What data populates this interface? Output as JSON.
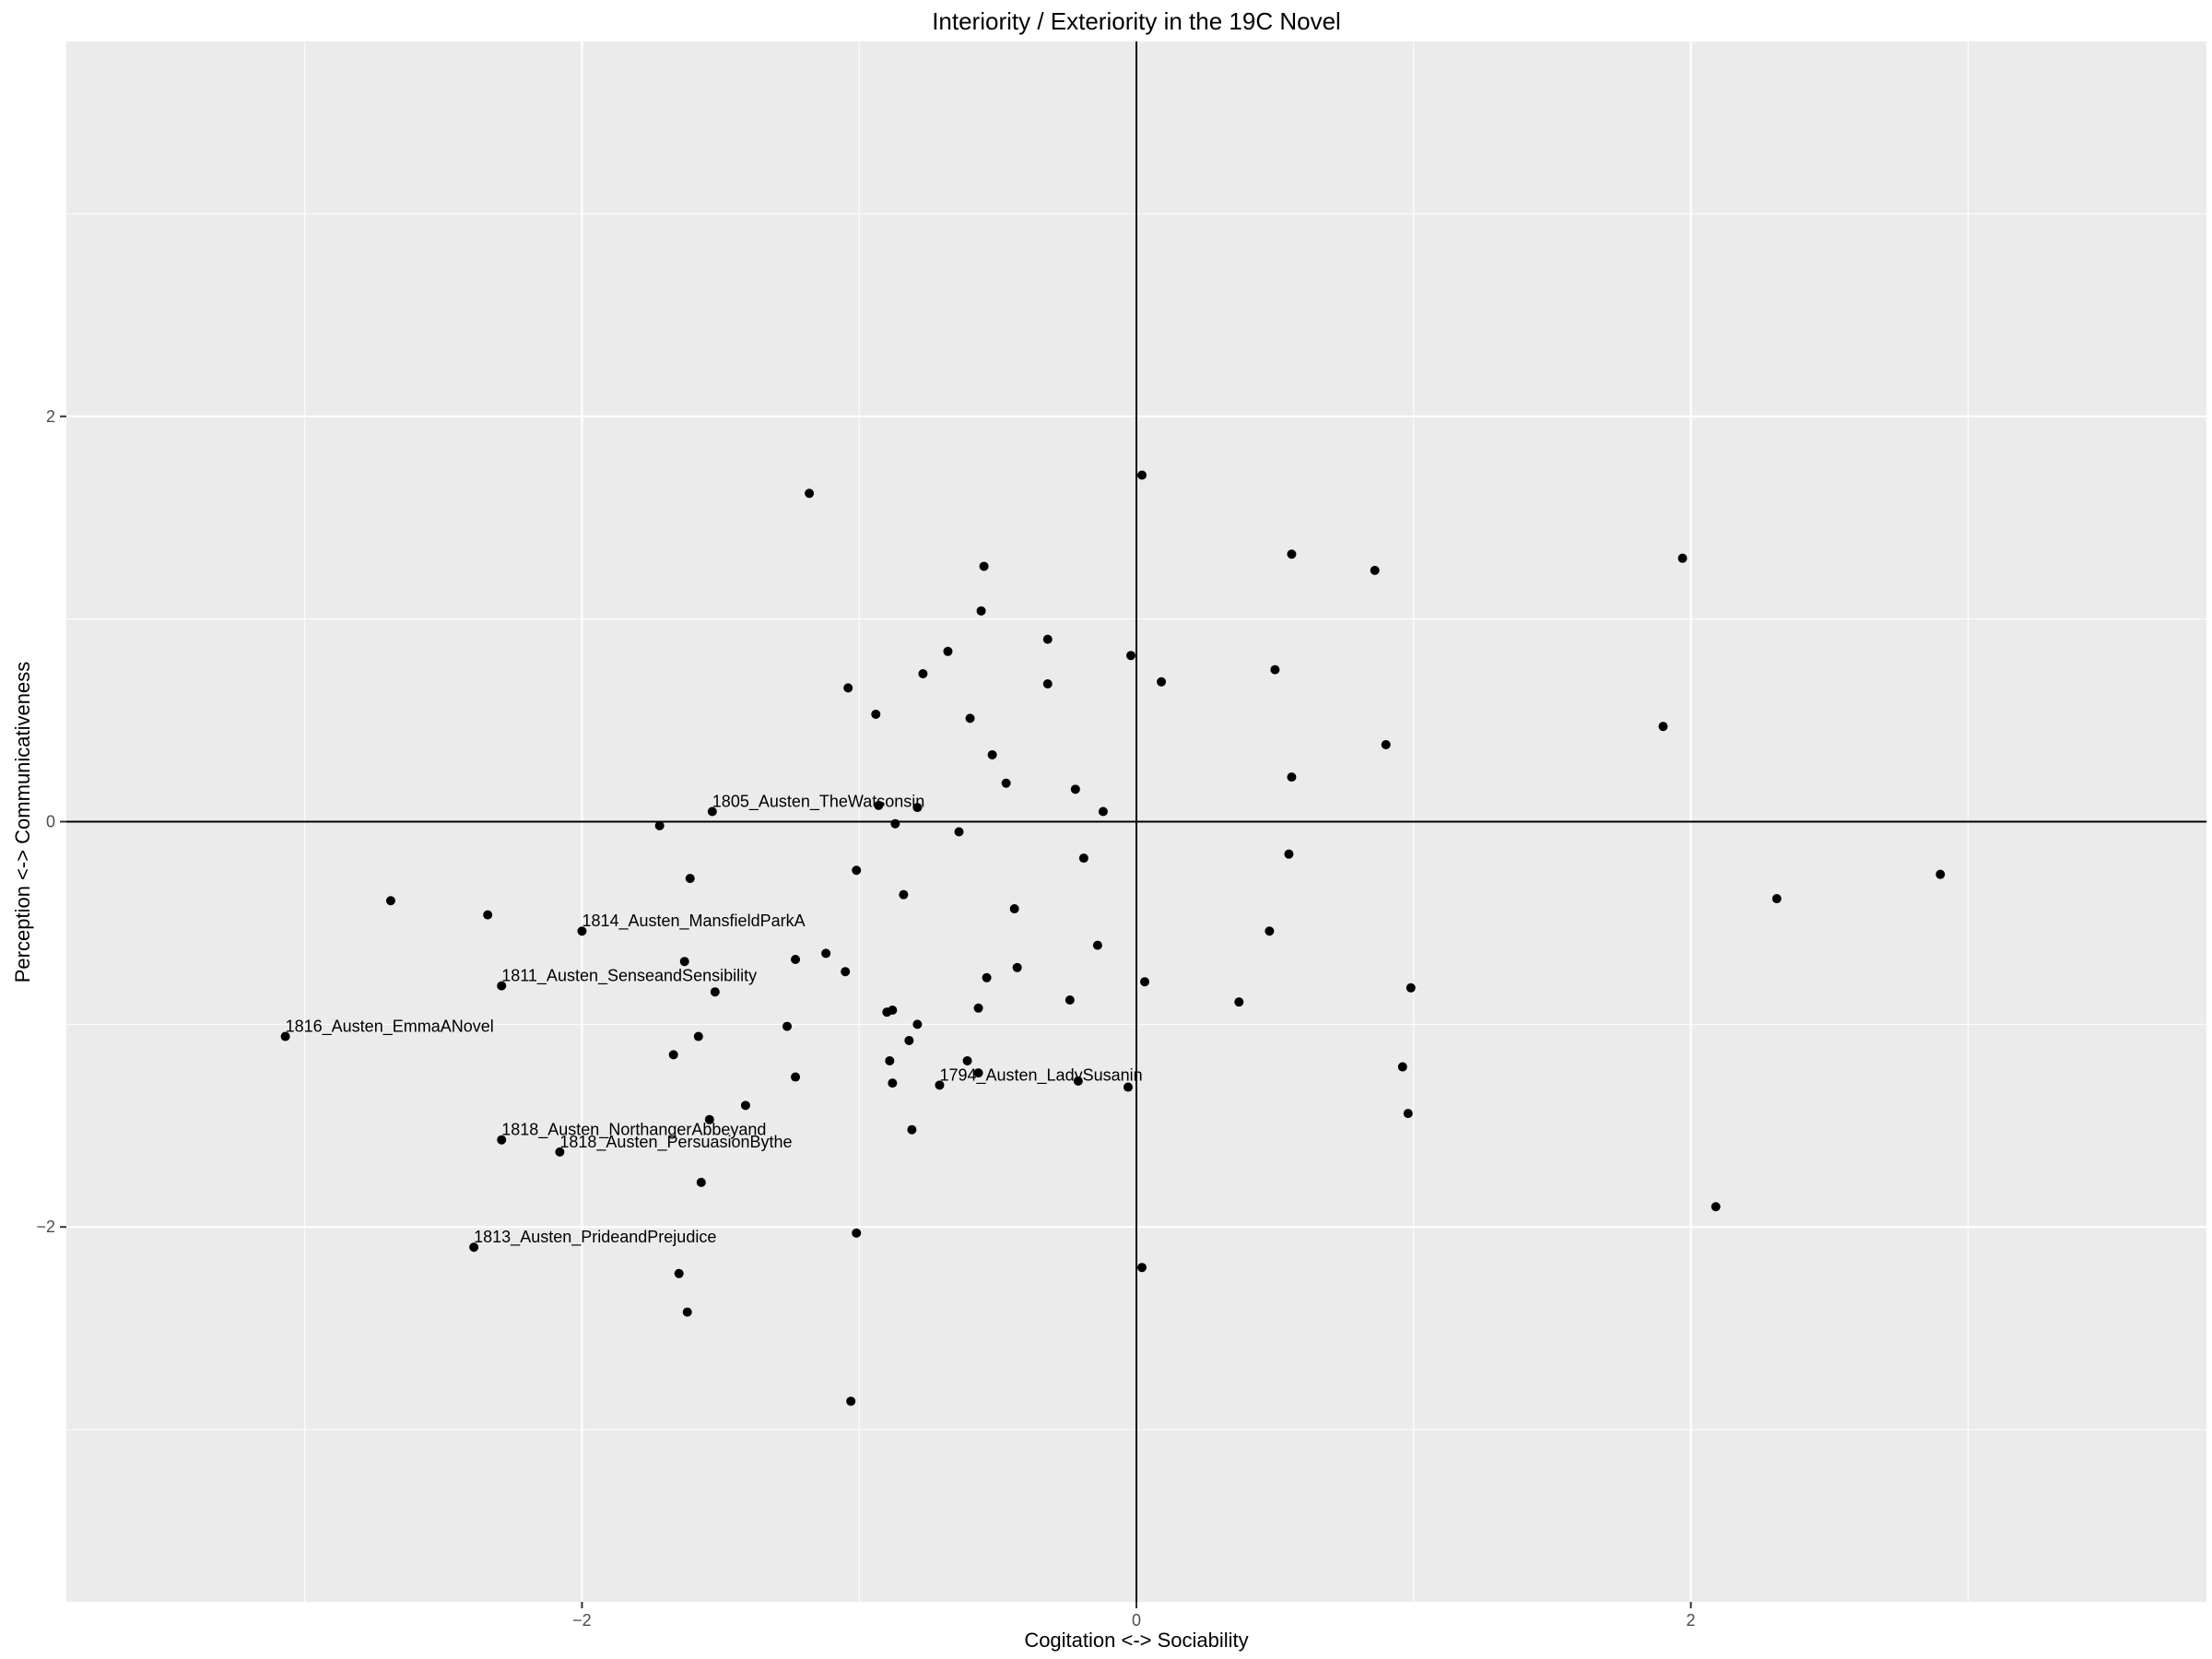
{
  "chart_data": {
    "type": "scatter",
    "title": "Interiority / Exteriority in the 19C Novel",
    "xlabel": "Cogitation <-> Sociability",
    "ylabel": "Perception <-> Communicativeness",
    "xlim": [
      -3.86,
      3.86
    ],
    "ylim": [
      -3.85,
      3.85
    ],
    "xticks": [
      -2,
      0,
      2
    ],
    "xtick_labels": [
      "−2",
      "0",
      "2"
    ],
    "yticks": [
      -2,
      0,
      2
    ],
    "ytick_labels": [
      "−2",
      "0",
      "2"
    ],
    "grid": true,
    "reference_lines": {
      "x": 0,
      "y": 0
    },
    "colors": {
      "panel": "#ebebeb",
      "grid": "#ffffff",
      "point": "#000000",
      "refline": "#000000"
    },
    "labeled_points": [
      {
        "label": "1805_Austen_TheWatsonsin",
        "x": -1.53,
        "y": 0.05
      },
      {
        "label": "1814_Austen_MansfieldParkA",
        "x": -2.0,
        "y": -0.54
      },
      {
        "label": "1811_Austen_SenseandSensibility",
        "x": -2.29,
        "y": -0.81
      },
      {
        "label": "1816_Austen_EmmaANovel",
        "x": -3.07,
        "y": -1.06
      },
      {
        "label": "1794_Austen_LadySusanin",
        "x": -0.71,
        "y": -1.3
      },
      {
        "label": "1818_Austen_NorthangerAbbeyand",
        "x": -2.29,
        "y": -1.57
      },
      {
        "label": "1818_Austen_PersuasionBythe",
        "x": -2.08,
        "y": -1.63
      },
      {
        "label": "1813_Austen_PrideandPrejudice",
        "x": -2.39,
        "y": -2.1
      }
    ],
    "points": [
      {
        "x": -1.18,
        "y": 1.62
      },
      {
        "x": 0.02,
        "y": 1.71
      },
      {
        "x": 0.56,
        "y": 1.32
      },
      {
        "x": 0.86,
        "y": 1.24
      },
      {
        "x": 1.97,
        "y": 1.3
      },
      {
        "x": -0.55,
        "y": 1.26
      },
      {
        "x": -0.56,
        "y": 1.04
      },
      {
        "x": -0.32,
        "y": 0.9
      },
      {
        "x": -0.68,
        "y": 0.84
      },
      {
        "x": -0.02,
        "y": 0.82
      },
      {
        "x": -0.77,
        "y": 0.73
      },
      {
        "x": 0.5,
        "y": 0.75
      },
      {
        "x": -1.04,
        "y": 0.66
      },
      {
        "x": -0.32,
        "y": 0.68
      },
      {
        "x": 0.09,
        "y": 0.69
      },
      {
        "x": -0.94,
        "y": 0.53
      },
      {
        "x": -0.6,
        "y": 0.51
      },
      {
        "x": 0.9,
        "y": 0.38
      },
      {
        "x": 1.9,
        "y": 0.47
      },
      {
        "x": -0.52,
        "y": 0.33
      },
      {
        "x": -0.47,
        "y": 0.19
      },
      {
        "x": 0.56,
        "y": 0.22
      },
      {
        "x": -0.22,
        "y": 0.16
      },
      {
        "x": -0.12,
        "y": 0.05
      },
      {
        "x": -0.79,
        "y": 0.07
      },
      {
        "x": -0.93,
        "y": 0.08
      },
      {
        "x": -0.87,
        "y": -0.01
      },
      {
        "x": -1.72,
        "y": -0.02
      },
      {
        "x": -0.64,
        "y": -0.05
      },
      {
        "x": -0.19,
        "y": -0.18
      },
      {
        "x": 0.55,
        "y": -0.16
      },
      {
        "x": -1.01,
        "y": -0.24
      },
      {
        "x": -1.61,
        "y": -0.28
      },
      {
        "x": 2.9,
        "y": -0.26
      },
      {
        "x": -0.84,
        "y": -0.36
      },
      {
        "x": -2.69,
        "y": -0.39
      },
      {
        "x": 2.31,
        "y": -0.38
      },
      {
        "x": -2.34,
        "y": -0.46
      },
      {
        "x": -0.44,
        "y": -0.43
      },
      {
        "x": 0.48,
        "y": -0.54
      },
      {
        "x": -0.14,
        "y": -0.61
      },
      {
        "x": -1.12,
        "y": -0.65
      },
      {
        "x": -1.23,
        "y": -0.68
      },
      {
        "x": -1.63,
        "y": -0.69
      },
      {
        "x": -1.05,
        "y": -0.74
      },
      {
        "x": -0.43,
        "y": -0.72
      },
      {
        "x": -0.54,
        "y": -0.77
      },
      {
        "x": 0.03,
        "y": -0.79
      },
      {
        "x": -1.52,
        "y": -0.84
      },
      {
        "x": 0.99,
        "y": -0.82
      },
      {
        "x": -0.24,
        "y": -0.88
      },
      {
        "x": 0.37,
        "y": -0.89
      },
      {
        "x": -0.57,
        "y": -0.92
      },
      {
        "x": -0.9,
        "y": -0.94
      },
      {
        "x": -0.88,
        "y": -0.93
      },
      {
        "x": -1.26,
        "y": -1.01
      },
      {
        "x": -0.79,
        "y": -1.0
      },
      {
        "x": -0.82,
        "y": -1.08
      },
      {
        "x": -1.58,
        "y": -1.06
      },
      {
        "x": -1.67,
        "y": -1.15
      },
      {
        "x": -0.89,
        "y": -1.18
      },
      {
        "x": -0.61,
        "y": -1.18
      },
      {
        "x": 0.96,
        "y": -1.21
      },
      {
        "x": -1.23,
        "y": -1.26
      },
      {
        "x": -0.57,
        "y": -1.24
      },
      {
        "x": -0.88,
        "y": -1.29
      },
      {
        "x": -0.21,
        "y": -1.28
      },
      {
        "x": -0.03,
        "y": -1.31
      },
      {
        "x": -1.41,
        "y": -1.4
      },
      {
        "x": -1.54,
        "y": -1.47
      },
      {
        "x": 0.98,
        "y": -1.44
      },
      {
        "x": -0.81,
        "y": -1.52
      },
      {
        "x": -1.57,
        "y": -1.78
      },
      {
        "x": 2.09,
        "y": -1.9
      },
      {
        "x": -1.01,
        "y": -2.03
      },
      {
        "x": -1.65,
        "y": -2.23
      },
      {
        "x": 0.02,
        "y": -2.2
      },
      {
        "x": -1.62,
        "y": -2.42
      },
      {
        "x": -1.03,
        "y": -2.86
      }
    ]
  }
}
